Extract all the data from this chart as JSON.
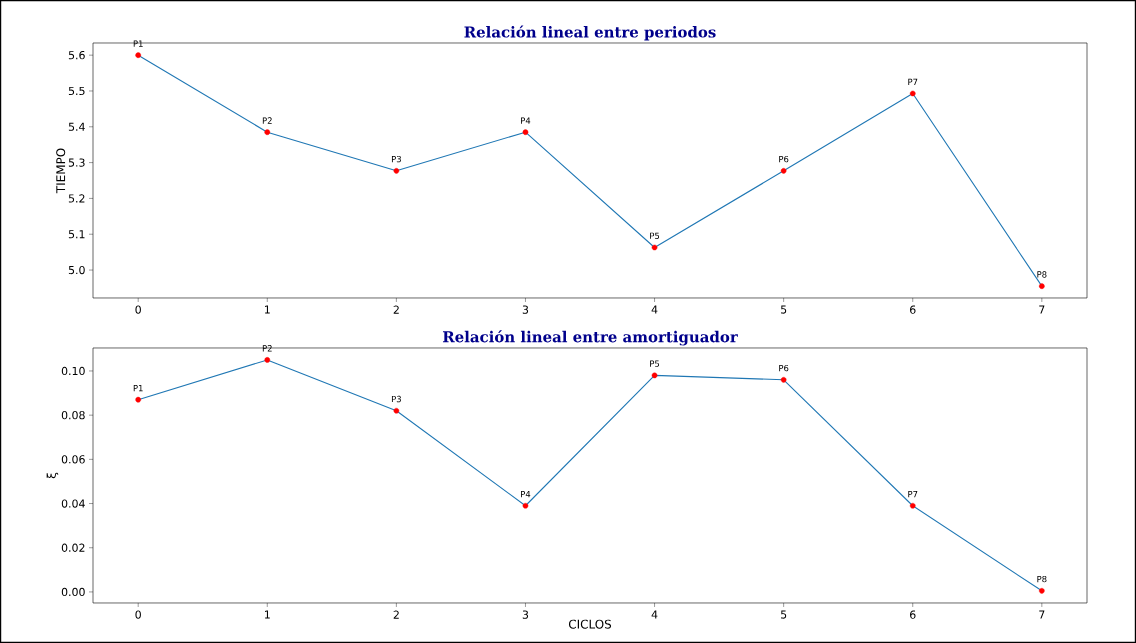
{
  "chart_data": [
    {
      "type": "line",
      "title": "Relación lineal entre periodos",
      "ylabel": "TIEMPO",
      "x": [
        0,
        1,
        2,
        3,
        4,
        5,
        6,
        7
      ],
      "series": [
        {
          "color": "#1f77b4",
          "marker": "none",
          "values": [
            5.6,
            5.385,
            5.277,
            5.385,
            5.063,
            5.277,
            5.493,
            4.955
          ]
        },
        {
          "type": "scatter",
          "color": "#ff0000",
          "marker": "circle",
          "values": [
            5.6,
            5.385,
            5.277,
            5.385,
            5.063,
            5.277,
            5.493,
            4.955
          ]
        }
      ],
      "xlim": [
        -0.35,
        7.35
      ],
      "ylim": [
        4.922,
        5.634
      ],
      "xticks": [
        0,
        1,
        2,
        3,
        4,
        5,
        6,
        7
      ],
      "yticks": [
        {
          "value": 5.0,
          "label": "5.0"
        },
        {
          "value": 5.1,
          "label": "5.1"
        },
        {
          "value": 5.2,
          "label": "5.2"
        },
        {
          "value": 5.3,
          "label": "5.3"
        },
        {
          "value": 5.4,
          "label": "5.4"
        },
        {
          "value": 5.5,
          "label": "5.5"
        },
        {
          "value": 5.6,
          "label": "5.6"
        }
      ],
      "annotations": [
        {
          "text": "P1",
          "x": 0,
          "y": 5.6
        },
        {
          "text": "P2",
          "x": 1,
          "y": 5.385
        },
        {
          "text": "P3",
          "x": 2,
          "y": 5.277
        },
        {
          "text": "P4",
          "x": 3,
          "y": 5.385
        },
        {
          "text": "P5",
          "x": 4,
          "y": 5.063
        },
        {
          "text": "P6",
          "x": 5,
          "y": 5.277
        },
        {
          "text": "P7",
          "x": 6,
          "y": 5.493
        },
        {
          "text": "P8",
          "x": 7,
          "y": 4.955
        }
      ]
    },
    {
      "type": "line",
      "title": "Relación lineal entre amortiguador",
      "xlabel": "CICLOS",
      "ylabel": "ξ",
      "x": [
        0,
        1,
        2,
        3,
        4,
        5,
        6,
        7
      ],
      "series": [
        {
          "color": "#1f77b4",
          "marker": "none",
          "values": [
            0.087,
            0.105,
            0.082,
            0.039,
            0.098,
            0.096,
            0.039,
            0.0005
          ]
        },
        {
          "type": "scatter",
          "color": "#ff0000",
          "marker": "circle",
          "values": [
            0.087,
            0.105,
            0.082,
            0.039,
            0.098,
            0.096,
            0.039,
            0.0005
          ]
        }
      ],
      "xlim": [
        -0.35,
        7.35
      ],
      "ylim": [
        -0.005,
        0.1104
      ],
      "xticks": [
        0,
        1,
        2,
        3,
        4,
        5,
        6,
        7
      ],
      "yticks": [
        {
          "value": 0.0,
          "label": "0.00"
        },
        {
          "value": 0.02,
          "label": "0.02"
        },
        {
          "value": 0.04,
          "label": "0.04"
        },
        {
          "value": 0.06,
          "label": "0.06"
        },
        {
          "value": 0.08,
          "label": "0.08"
        },
        {
          "value": 0.1,
          "label": "0.10"
        }
      ],
      "annotations": [
        {
          "text": "P1",
          "x": 0,
          "y": 0.087
        },
        {
          "text": "P2",
          "x": 1,
          "y": 0.105
        },
        {
          "text": "P3",
          "x": 2,
          "y": 0.082
        },
        {
          "text": "P4",
          "x": 3,
          "y": 0.039
        },
        {
          "text": "P5",
          "x": 4,
          "y": 0.098
        },
        {
          "text": "P6",
          "x": 5,
          "y": 0.096
        },
        {
          "text": "P7",
          "x": 6,
          "y": 0.039
        },
        {
          "text": "P8",
          "x": 7,
          "y": 0.0005
        }
      ]
    }
  ]
}
